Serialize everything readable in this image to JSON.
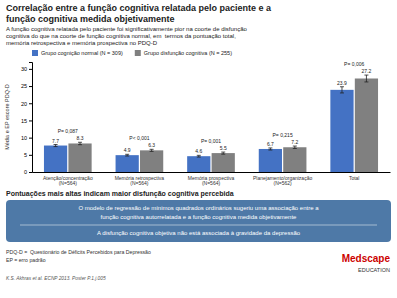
{
  "chart_data": {
    "type": "bar",
    "title": "Correlação entre a função cognitiva relatada pelo paciente e a\nfunção cognitiva medida objetivamente",
    "subtitle": "A função cognitiva relatada pelo paciente foi significativamente pior na coorte de disfunção\ncognitiva do que na coorte de função cognitiva normal, em  termos da pontuação total,\nmemória retrospectiva e memória prospectiva no PDQ-D",
    "categories": [
      "Atenção/concentração\n(N=564)",
      "Memória retrospectiva\n(N=564)",
      "Memória prospectiva\n(N=564)",
      "Planejamento/organização\n(N=562)",
      "Total"
    ],
    "series": [
      {
        "name": "Grupo cognição normal (N = 309)",
        "color": "#4472C4",
        "values": [
          7.7,
          4.9,
          4.6,
          6.7,
          23.9
        ],
        "errors": [
          0.3,
          0.25,
          0.25,
          0.3,
          0.9
        ]
      },
      {
        "name": "Grupo disfunção cognitiva (N = 255)",
        "color": "#808080",
        "values": [
          8.3,
          6.3,
          5.5,
          7.2,
          27.2
        ],
        "errors": [
          0.35,
          0.3,
          0.3,
          0.35,
          1.0
        ]
      }
    ],
    "p_values": [
      "P= 0,087",
      "P< 0,001",
      "P= 0,001",
      "P= 0,215",
      "P= 0,006"
    ],
    "ylabel": "Média e EP escore PDQ-D",
    "ylim": [
      0,
      32
    ],
    "yticks": [
      0,
      5,
      10,
      15,
      20,
      25,
      30
    ],
    "grid": false,
    "legend": "upper left",
    "data_labels": true,
    "note": "Pontuações mais altas indicam maior disfunção cognitiva percebida",
    "box_texts": [
      "O modelo de regressão de mínimos quadrados ordinários sugeriu uma associação entre a",
      "função cognitiva autorrelatada e a função cognitiva medida objetivamente",
      "A disfunção cognitiva objetiva não está associada à gravidade da depressão"
    ],
    "footnotes": [
      "PDQ-D =  Questionário de Déficits Percebidos para Depressão",
      "EP = erro padrão"
    ],
    "source": "K.S. Akhras et al. ECNP 2013. Poster P.1.j.005",
    "logo": [
      "Medscape",
      "EDUCATION"
    ]
  }
}
